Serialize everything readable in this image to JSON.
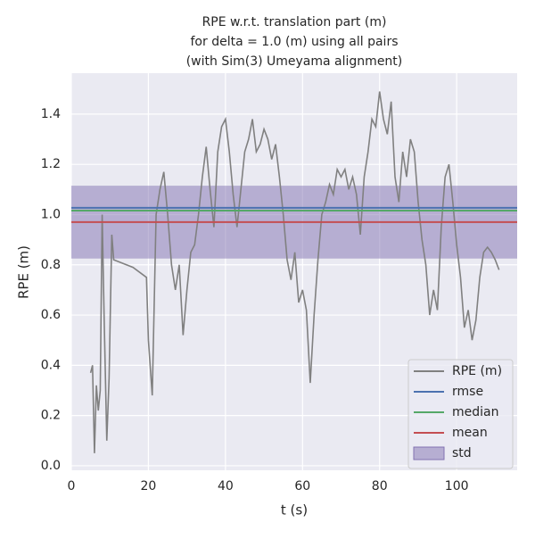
{
  "chart_data": {
    "type": "line",
    "title": [
      "RPE w.r.t. translation part (m)",
      "for delta = 1.0 (m) using all pairs",
      "(with Sim(3) Umeyama alignment)"
    ],
    "xlabel": "t (s)",
    "ylabel": "RPE (m)",
    "xlim": [
      0,
      115.7
    ],
    "ylim": [
      -0.018,
      1.563
    ],
    "xticks": [
      0,
      20,
      40,
      60,
      80,
      100
    ],
    "yticks": [
      {
        "value": 0,
        "label": "0.0"
      },
      0.2,
      0.4,
      0.6,
      0.8,
      {
        "value": 1,
        "label": "1.0"
      },
      1.2,
      1.4
    ],
    "grid": true,
    "legend": "lower right",
    "series": [
      {
        "name": "RPE (m)",
        "color": "#808080",
        "x": [
          5,
          5.5,
          6,
          6.5,
          7,
          7.5,
          8,
          8.5,
          9.2,
          9.8,
          10.5,
          11,
          16,
          19.5,
          20,
          21,
          22,
          23,
          24,
          25,
          26,
          27,
          28,
          29,
          30,
          31,
          32,
          33,
          34,
          35,
          36,
          37,
          38,
          39,
          40,
          41,
          42,
          43,
          44,
          45,
          46,
          47,
          48,
          49,
          50,
          51,
          52,
          53,
          54,
          55,
          56,
          57,
          58,
          59,
          60,
          61,
          62,
          63,
          64,
          65,
          66,
          67,
          68,
          69,
          70,
          71,
          72,
          73,
          74,
          75,
          76,
          77,
          78,
          79,
          80,
          81,
          82,
          83,
          84,
          85,
          86,
          87,
          88,
          89,
          90,
          91,
          92,
          93,
          94,
          95,
          96,
          97,
          98,
          99,
          100,
          101,
          102,
          103,
          104,
          105,
          106,
          107,
          108,
          109,
          110,
          111
        ],
        "values": [
          0.37,
          0.4,
          0.05,
          0.32,
          0.22,
          0.3,
          1.0,
          0.6,
          0.1,
          0.35,
          0.92,
          0.82,
          0.79,
          0.75,
          0.5,
          0.28,
          1.0,
          1.1,
          1.17,
          1.0,
          0.8,
          0.7,
          0.8,
          0.52,
          0.7,
          0.85,
          0.88,
          1.0,
          1.15,
          1.27,
          1.1,
          0.95,
          1.25,
          1.35,
          1.38,
          1.25,
          1.08,
          0.95,
          1.1,
          1.25,
          1.3,
          1.38,
          1.25,
          1.28,
          1.34,
          1.3,
          1.22,
          1.28,
          1.15,
          1.0,
          0.82,
          0.74,
          0.85,
          0.65,
          0.7,
          0.62,
          0.33,
          0.6,
          0.82,
          1.0,
          1.05,
          1.12,
          1.08,
          1.18,
          1.15,
          1.18,
          1.1,
          1.15,
          1.08,
          0.92,
          1.15,
          1.25,
          1.38,
          1.35,
          1.49,
          1.38,
          1.32,
          1.45,
          1.15,
          1.05,
          1.25,
          1.15,
          1.3,
          1.25,
          1.05,
          0.9,
          0.8,
          0.6,
          0.7,
          0.62,
          0.95,
          1.15,
          1.2,
          1.05,
          0.88,
          0.75,
          0.55,
          0.62,
          0.5,
          0.58,
          0.75,
          0.85,
          0.87,
          0.85,
          0.82,
          0.78
        ]
      }
    ],
    "stats": [
      {
        "name": "rmse",
        "color": "#4c72b0",
        "value": 1.027
      },
      {
        "name": "median",
        "color": "#55a868",
        "value": 1.016
      },
      {
        "name": "mean",
        "color": "#c44e52",
        "value": 0.97
      }
    ],
    "std": {
      "name": "std",
      "color": "#8172b2",
      "value": 0.145
    }
  }
}
